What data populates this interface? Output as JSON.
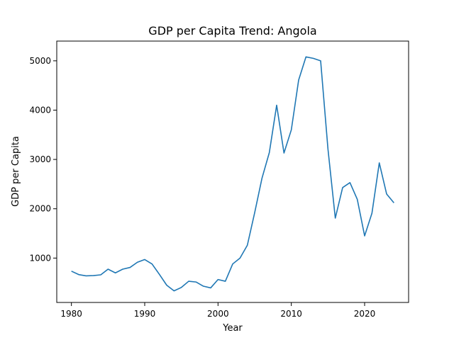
{
  "chart_data": {
    "type": "line",
    "title": "GDP per Capita Trend: Angola",
    "xlabel": "Year",
    "ylabel": "GDP per Capita",
    "xlim": [
      1978,
      2026
    ],
    "ylim": [
      100,
      5400
    ],
    "xticks": [
      1980,
      1990,
      2000,
      2010,
      2020
    ],
    "yticks": [
      1000,
      2000,
      3000,
      4000,
      5000
    ],
    "grid": false,
    "legend": "none",
    "series": [
      {
        "color": "#1f77b4",
        "x": [
          1980,
          1981,
          1982,
          1983,
          1984,
          1985,
          1986,
          1987,
          1988,
          1989,
          1990,
          1991,
          1992,
          1993,
          1994,
          1995,
          1996,
          1997,
          1998,
          1999,
          2000,
          2001,
          2002,
          2003,
          2004,
          2005,
          2006,
          2007,
          2008,
          2009,
          2010,
          2011,
          2012,
          2013,
          2014,
          2015,
          2016,
          2017,
          2018,
          2019,
          2020,
          2021,
          2022,
          2023,
          2024
        ],
        "values": [
          735,
          665,
          640,
          645,
          660,
          775,
          700,
          775,
          810,
          915,
          970,
          880,
          670,
          450,
          335,
          405,
          530,
          515,
          430,
          395,
          565,
          530,
          880,
          1000,
          1260,
          1920,
          2620,
          3140,
          4100,
          3130,
          3600,
          4610,
          5080,
          5050,
          5000,
          3210,
          1810,
          2430,
          2530,
          2190,
          1450,
          1910,
          2930,
          2300,
          2120
        ]
      }
    ]
  }
}
